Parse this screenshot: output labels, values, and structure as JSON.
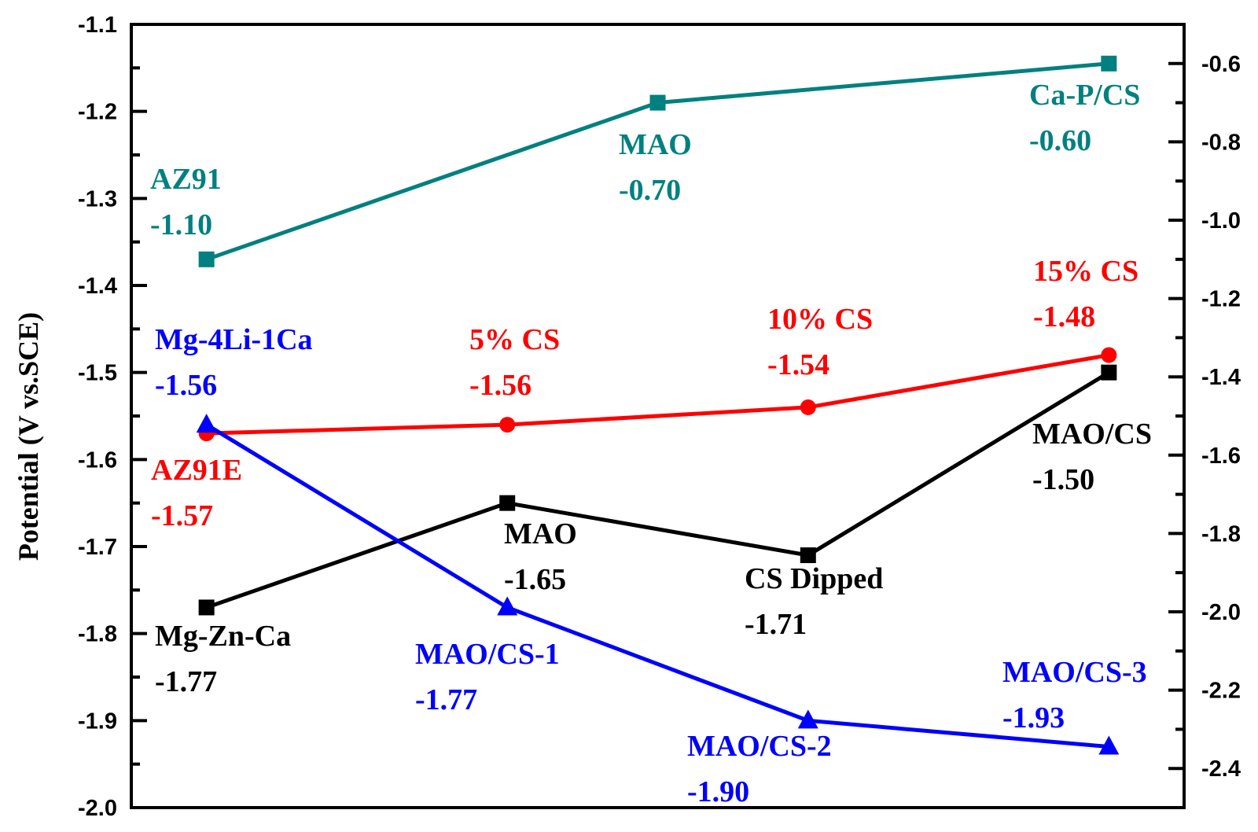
{
  "chart_data": {
    "type": "line",
    "title": "",
    "xlabel": "",
    "ylabel": "Potential (V vs.SCE)",
    "xlim": [
      0.75,
      4.25
    ],
    "ylim": [
      -2.0,
      -1.1
    ],
    "y2lim": [
      -2.5,
      -0.5
    ],
    "yticks": [
      "-1.1",
      "-1.2",
      "-1.3",
      "-1.4",
      "-1.5",
      "-1.6",
      "-1.7",
      "-1.8",
      "-1.9",
      "-2.0"
    ],
    "y2ticks": [
      "-0.6",
      "-0.8",
      "-1.0",
      "-1.2",
      "-1.4",
      "-1.6",
      "-1.8",
      "-2.0",
      "-2.2",
      "-2.4"
    ],
    "grid": false,
    "series": [
      {
        "color": "#008080",
        "marker": "square",
        "axis": "right",
        "x": [
          1,
          2.5,
          4
        ],
        "y": [
          -1.1,
          -0.7,
          -0.6
        ],
        "labels": [
          "AZ91",
          "MAO",
          "Ca-P/CS"
        ],
        "value_labels": [
          "-1.10",
          "-0.70",
          "-0.60"
        ]
      },
      {
        "color": "#ff0000",
        "marker": "circle",
        "axis": "left",
        "x": [
          1,
          2,
          3,
          4
        ],
        "y": [
          -1.57,
          -1.56,
          -1.54,
          -1.48
        ],
        "labels": [
          "AZ91E",
          "5% CS",
          "10% CS",
          "15% CS"
        ],
        "value_labels": [
          "-1.57",
          "-1.56",
          "-1.54",
          "-1.48"
        ]
      },
      {
        "color": "#000000",
        "marker": "square",
        "axis": "left",
        "x": [
          1,
          2,
          3,
          4
        ],
        "y": [
          -1.77,
          -1.65,
          -1.71,
          -1.5
        ],
        "labels": [
          "Mg-Zn-Ca",
          "MAO",
          "CS Dipped",
          "MAO/CS"
        ],
        "value_labels": [
          "-1.77",
          "-1.65",
          "-1.71",
          "-1.50"
        ]
      },
      {
        "color": "#0000ff",
        "marker": "triangle",
        "axis": "left",
        "x": [
          1,
          2,
          3,
          4
        ],
        "y": [
          -1.56,
          -1.77,
          -1.9,
          -1.93
        ],
        "labels": [
          "Mg-4Li-1Ca",
          "MAO/CS-1",
          "MAO/CS-2",
          "MAO/CS-3"
        ],
        "value_labels": [
          "-1.56",
          "-1.77",
          "-1.90",
          "-1.93"
        ]
      }
    ]
  }
}
